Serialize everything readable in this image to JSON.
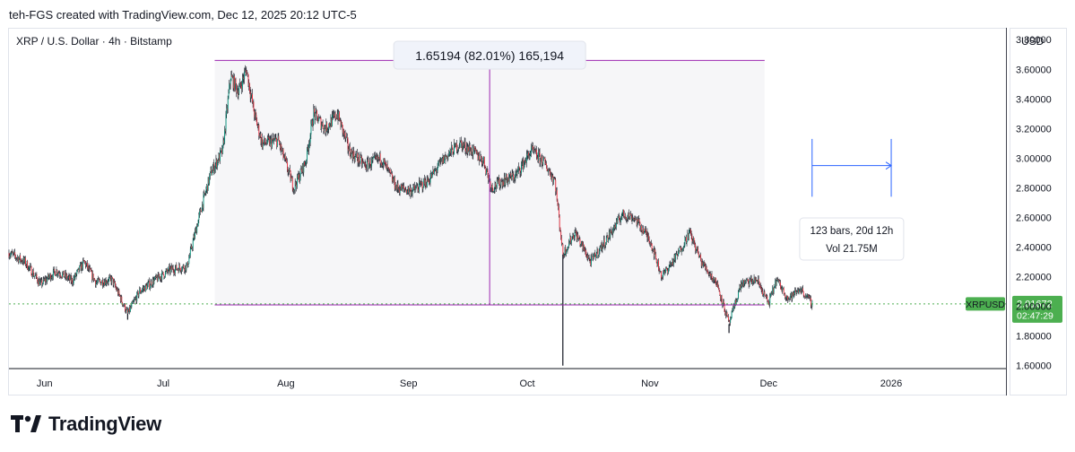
{
  "header": {
    "credit": "teh-FGS created with TradingView.com, Dec 12, 2025 20:12 UTC-5"
  },
  "chart_data": {
    "type": "candlestick",
    "title": "XRP / U.S. Dollar · 4h · Bitstamp",
    "currency": "USD",
    "symbol": "XRPUSD",
    "last_price": "2.01672",
    "countdown": "02:47:29",
    "ylim": [
      1.58,
      3.88
    ],
    "y_ticks": [
      "1.60000",
      "1.80000",
      "2.00000",
      "2.20000",
      "2.40000",
      "2.60000",
      "2.80000",
      "3.00000",
      "3.20000",
      "3.40000",
      "3.60000",
      "3.80000"
    ],
    "x_range": [
      "2025-05-23",
      "2026-01-30"
    ],
    "x_ticks": [
      {
        "date": "2025-06-01",
        "label": "Jun"
      },
      {
        "date": "2025-07-01",
        "label": "Jul"
      },
      {
        "date": "2025-08-01",
        "label": "Aug"
      },
      {
        "date": "2025-09-01",
        "label": "Sep"
      },
      {
        "date": "2025-10-01",
        "label": "Oct"
      },
      {
        "date": "2025-11-01",
        "label": "Nov"
      },
      {
        "date": "2025-12-01",
        "label": "Dec"
      },
      {
        "date": "2026-01-01",
        "label": "2026"
      }
    ],
    "price_path": [
      {
        "date": "2025-05-23",
        "price": 2.36
      },
      {
        "date": "2025-05-27",
        "price": 2.3
      },
      {
        "date": "2025-05-31",
        "price": 2.15
      },
      {
        "date": "2025-06-04",
        "price": 2.24
      },
      {
        "date": "2025-06-08",
        "price": 2.17
      },
      {
        "date": "2025-06-11",
        "price": 2.3
      },
      {
        "date": "2025-06-14",
        "price": 2.16
      },
      {
        "date": "2025-06-18",
        "price": 2.18
      },
      {
        "date": "2025-06-22",
        "price": 1.95
      },
      {
        "date": "2025-06-25",
        "price": 2.1
      },
      {
        "date": "2025-06-29",
        "price": 2.18
      },
      {
        "date": "2025-07-03",
        "price": 2.25
      },
      {
        "date": "2025-07-07",
        "price": 2.27
      },
      {
        "date": "2025-07-10",
        "price": 2.6
      },
      {
        "date": "2025-07-13",
        "price": 2.9
      },
      {
        "date": "2025-07-16",
        "price": 3.05
      },
      {
        "date": "2025-07-18",
        "price": 3.55
      },
      {
        "date": "2025-07-20",
        "price": 3.45
      },
      {
        "date": "2025-07-22",
        "price": 3.6
      },
      {
        "date": "2025-07-24",
        "price": 3.3
      },
      {
        "date": "2025-07-26",
        "price": 3.1
      },
      {
        "date": "2025-07-30",
        "price": 3.12
      },
      {
        "date": "2025-08-03",
        "price": 2.8
      },
      {
        "date": "2025-08-06",
        "price": 2.98
      },
      {
        "date": "2025-08-08",
        "price": 3.3
      },
      {
        "date": "2025-08-11",
        "price": 3.2
      },
      {
        "date": "2025-08-14",
        "price": 3.3
      },
      {
        "date": "2025-08-17",
        "price": 3.05
      },
      {
        "date": "2025-08-21",
        "price": 2.95
      },
      {
        "date": "2025-08-25",
        "price": 3.0
      },
      {
        "date": "2025-08-29",
        "price": 2.8
      },
      {
        "date": "2025-09-02",
        "price": 2.78
      },
      {
        "date": "2025-09-06",
        "price": 2.85
      },
      {
        "date": "2025-09-10",
        "price": 3.0
      },
      {
        "date": "2025-09-14",
        "price": 3.1
      },
      {
        "date": "2025-09-17",
        "price": 3.05
      },
      {
        "date": "2025-09-20",
        "price": 2.98
      },
      {
        "date": "2025-09-22",
        "price": 2.8
      },
      {
        "date": "2025-09-25",
        "price": 2.85
      },
      {
        "date": "2025-09-28",
        "price": 2.88
      },
      {
        "date": "2025-10-02",
        "price": 3.05
      },
      {
        "date": "2025-10-05",
        "price": 2.98
      },
      {
        "date": "2025-10-08",
        "price": 2.85
      },
      {
        "date": "2025-10-10",
        "price": 2.35
      },
      {
        "date": "2025-10-13",
        "price": 2.5
      },
      {
        "date": "2025-10-17",
        "price": 2.3
      },
      {
        "date": "2025-10-21",
        "price": 2.45
      },
      {
        "date": "2025-10-25",
        "price": 2.62
      },
      {
        "date": "2025-10-28",
        "price": 2.6
      },
      {
        "date": "2025-11-01",
        "price": 2.45
      },
      {
        "date": "2025-11-04",
        "price": 2.2
      },
      {
        "date": "2025-11-08",
        "price": 2.35
      },
      {
        "date": "2025-11-11",
        "price": 2.5
      },
      {
        "date": "2025-11-14",
        "price": 2.3
      },
      {
        "date": "2025-11-18",
        "price": 2.15
      },
      {
        "date": "2025-11-21",
        "price": 1.88
      },
      {
        "date": "2025-11-24",
        "price": 2.15
      },
      {
        "date": "2025-11-28",
        "price": 2.18
      },
      {
        "date": "2025-12-01",
        "price": 2.02
      },
      {
        "date": "2025-12-03",
        "price": 2.18
      },
      {
        "date": "2025-12-06",
        "price": 2.05
      },
      {
        "date": "2025-12-09",
        "price": 2.12
      },
      {
        "date": "2025-12-12",
        "price": 2.01672
      }
    ],
    "spikes": [
      {
        "date": "2025-10-10",
        "low": 1.6
      },
      {
        "date": "2025-11-21",
        "low": 1.82
      },
      {
        "date": "2025-06-22",
        "low": 1.91
      }
    ],
    "annotations": {
      "price_range": {
        "from_date": "2025-07-14",
        "to_date": "2025-11-30",
        "low": 2.01,
        "high": 3.66,
        "label": "1.65194 (82.01%) 165,194"
      },
      "date_range": {
        "from_date": "2025-12-12",
        "to_date": "2026-01-01",
        "price_top": 3.13,
        "price_mid": 2.95,
        "price_bottom": 2.74,
        "label_line1": "123 bars, 20d 12h",
        "label_line2": "Vol 21.75M"
      }
    },
    "colors": {
      "up": "#089981",
      "down": "#f23645",
      "range": "#9c27b0",
      "date_range": "#2962ff",
      "last_price": "#4caf50",
      "text": "#131722"
    }
  },
  "brand": {
    "name": "TradingView",
    "logo_icon": "tradingview-logo-icon"
  }
}
